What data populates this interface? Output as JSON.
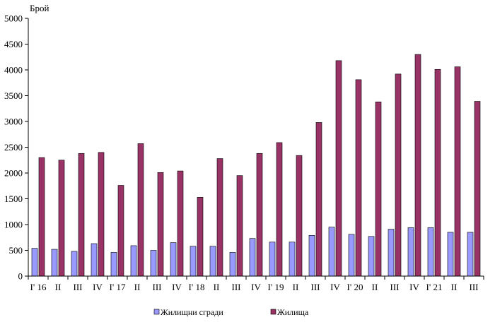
{
  "chart_data": {
    "type": "bar",
    "ylabel": "Брой",
    "ylim": [
      0,
      5000
    ],
    "yticks": [
      0,
      500,
      1000,
      1500,
      2000,
      2500,
      3000,
      3500,
      4000,
      4500,
      5000
    ],
    "grid": false,
    "legend_position": "bottom",
    "categories": [
      "I' 16",
      "II",
      "III",
      "IV",
      "I' 17",
      "II",
      "III",
      "IV",
      "I' 18",
      "II",
      "III",
      "IV",
      "I' 19",
      "II",
      "III",
      "IV",
      "I' 20",
      "II",
      "III",
      "IV",
      "I' 21",
      "II",
      "III"
    ],
    "series": [
      {
        "name": "Жилищни сгради",
        "color": "#9999ff",
        "values": [
          540,
          520,
          480,
          630,
          460,
          590,
          500,
          650,
          580,
          580,
          460,
          730,
          660,
          660,
          790,
          950,
          810,
          770,
          910,
          940,
          940,
          850,
          850
        ]
      },
      {
        "name": "Жилища",
        "color": "#993366",
        "values": [
          2300,
          2250,
          2380,
          2400,
          1760,
          2570,
          2010,
          2040,
          1530,
          2280,
          1950,
          2380,
          2590,
          2340,
          2980,
          4180,
          3810,
          3380,
          3920,
          4300,
          4010,
          4060,
          3390
        ]
      }
    ]
  }
}
